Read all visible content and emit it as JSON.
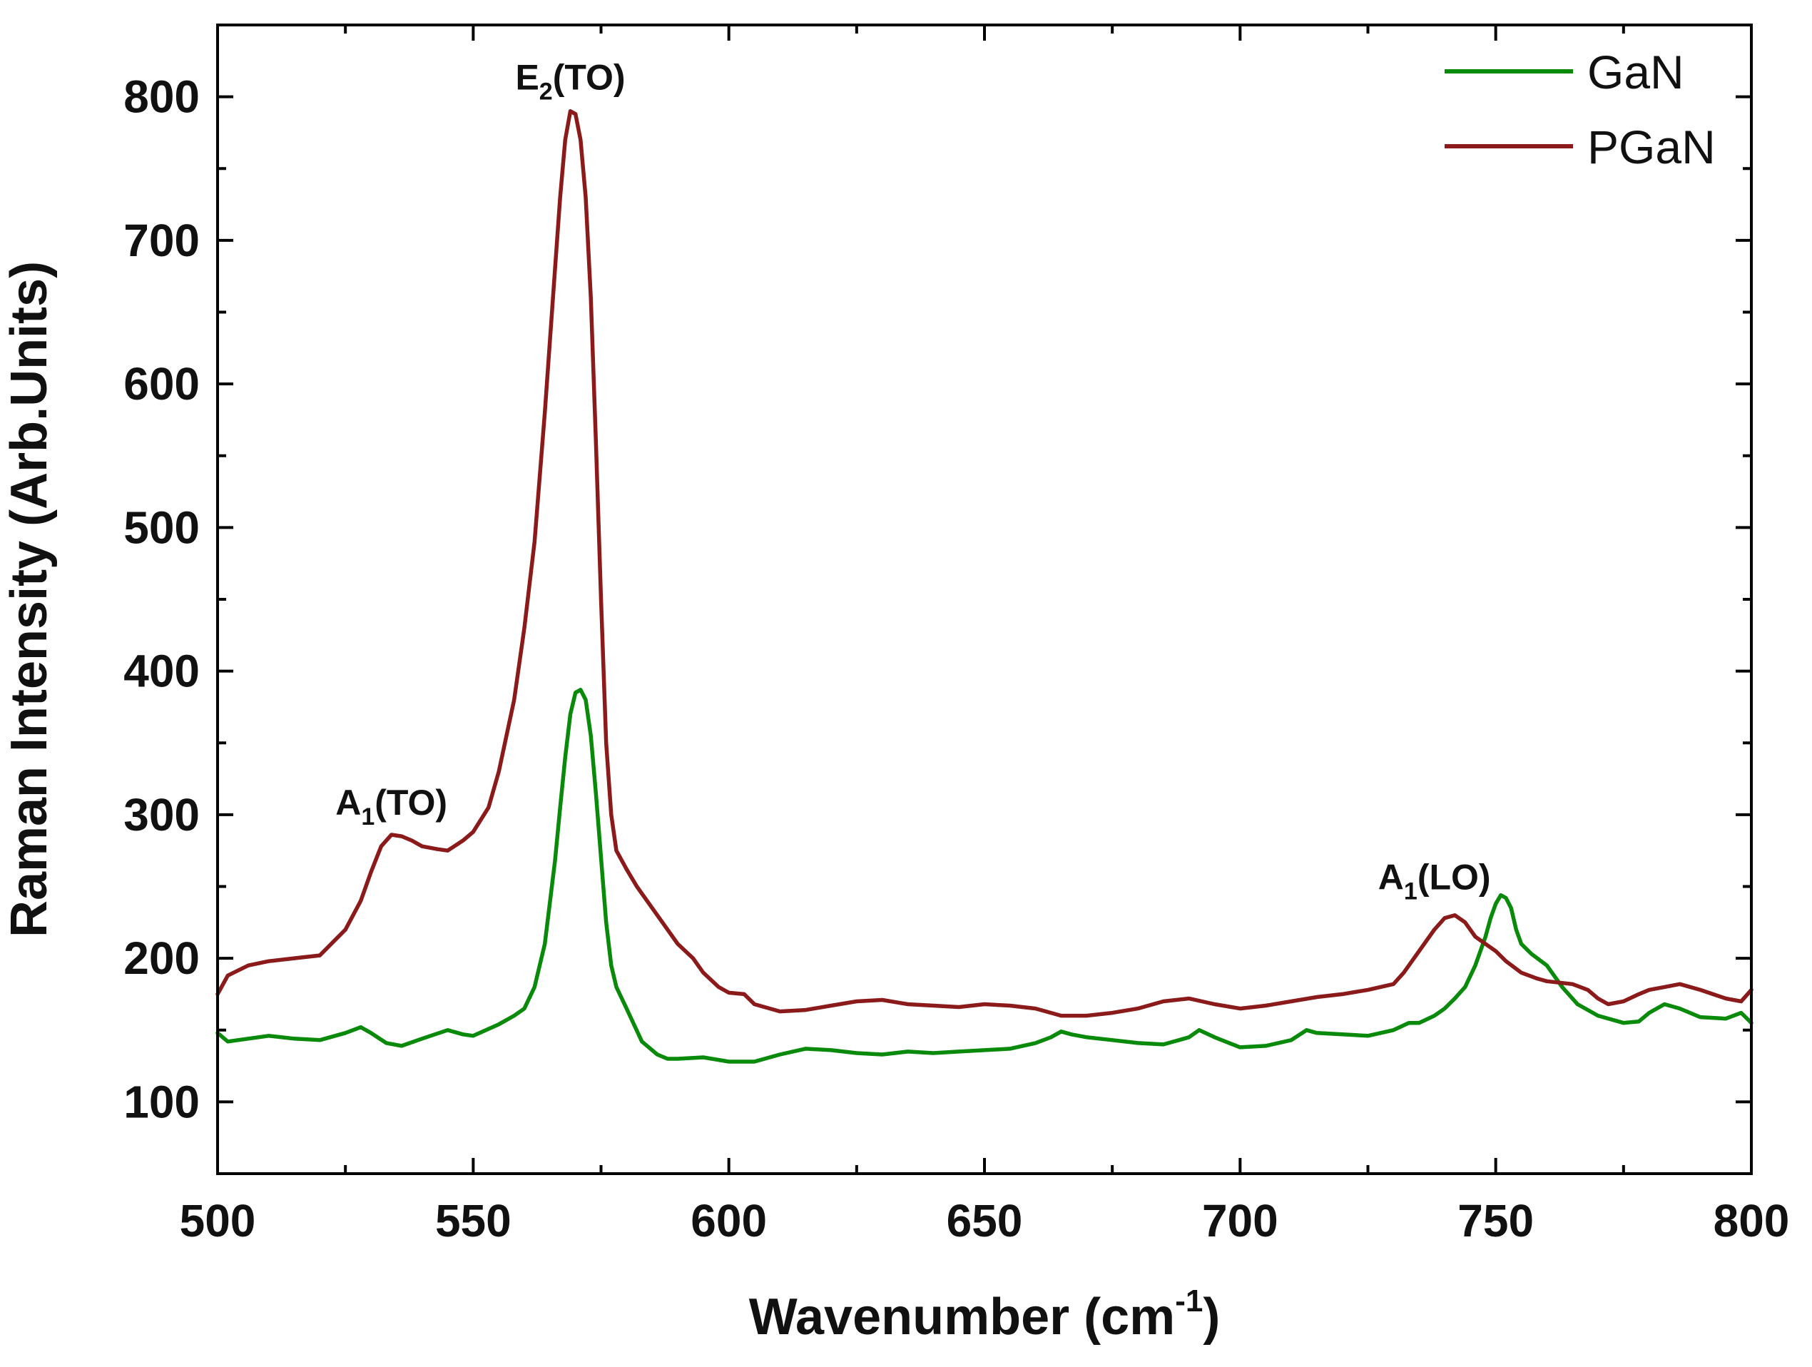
{
  "chart_data": {
    "type": "line",
    "title": "",
    "xlabel": "Wavenumber (cm",
    "xlabel_superscript": "-1",
    "xlabel_close": ")",
    "ylabel": "Raman Intensity (Arb.Units)",
    "xlim": [
      500,
      800
    ],
    "ylim": [
      50,
      850
    ],
    "x_ticks": [
      500,
      550,
      600,
      650,
      700,
      750,
      800
    ],
    "y_ticks": [
      100,
      200,
      300,
      400,
      500,
      600,
      700,
      800
    ],
    "x_tick_labels": [
      "500",
      "550",
      "600",
      "650",
      "700",
      "750",
      "800"
    ],
    "y_tick_labels": [
      "100",
      "200",
      "300",
      "400",
      "500",
      "600",
      "700",
      "800"
    ],
    "grid": false,
    "legend_position": "top-right",
    "series": [
      {
        "name": "GaN",
        "color": "#0a8a0a",
        "x": [
          500,
          502,
          506,
          510,
          515,
          520,
          525,
          528,
          530,
          533,
          536,
          540,
          545,
          548,
          550,
          555,
          558,
          560,
          562,
          564,
          566,
          567,
          568,
          569,
          570,
          571,
          572,
          573,
          574,
          575,
          576,
          577,
          578,
          580,
          583,
          586,
          588,
          590,
          595,
          600,
          605,
          610,
          615,
          620,
          625,
          630,
          635,
          640,
          645,
          650,
          655,
          660,
          663,
          665,
          667,
          670,
          675,
          680,
          685,
          690,
          692,
          695,
          700,
          705,
          710,
          713,
          715,
          720,
          725,
          730,
          733,
          735,
          738,
          740,
          742,
          744,
          746,
          748,
          749,
          750,
          751,
          752,
          753,
          754,
          755,
          757,
          760,
          763,
          766,
          770,
          775,
          778,
          780,
          783,
          786,
          790,
          795,
          798,
          800
        ],
        "y": [
          148,
          142,
          144,
          146,
          144,
          143,
          148,
          152,
          148,
          141,
          139,
          144,
          150,
          147,
          146,
          154,
          160,
          165,
          180,
          210,
          268,
          305,
          340,
          370,
          385,
          387,
          380,
          355,
          315,
          270,
          225,
          195,
          180,
          165,
          142,
          133,
          130,
          130,
          131,
          128,
          128,
          133,
          137,
          136,
          134,
          133,
          135,
          134,
          135,
          136,
          137,
          141,
          145,
          149,
          147,
          145,
          143,
          141,
          140,
          145,
          150,
          145,
          138,
          139,
          143,
          150,
          148,
          147,
          146,
          150,
          155,
          155,
          160,
          165,
          172,
          180,
          195,
          215,
          228,
          238,
          244,
          242,
          235,
          220,
          210,
          203,
          195,
          180,
          168,
          160,
          155,
          156,
          162,
          168,
          165,
          159,
          158,
          162,
          155
        ]
      },
      {
        "name": "PGaN",
        "color": "#8b1a1a",
        "x": [
          500,
          502,
          506,
          510,
          515,
          520,
          525,
          528,
          530,
          532,
          534,
          536,
          538,
          540,
          543,
          545,
          548,
          550,
          553,
          555,
          558,
          560,
          562,
          564,
          566,
          567,
          568,
          569,
          570,
          571,
          572,
          573,
          574,
          575,
          576,
          577,
          578,
          580,
          582,
          585,
          588,
          590,
          593,
          595,
          598,
          600,
          603,
          605,
          610,
          615,
          620,
          625,
          630,
          635,
          640,
          645,
          650,
          655,
          660,
          665,
          670,
          675,
          680,
          685,
          690,
          695,
          700,
          705,
          710,
          715,
          720,
          725,
          730,
          732,
          735,
          738,
          740,
          742,
          744,
          746,
          748,
          750,
          752,
          755,
          758,
          760,
          765,
          768,
          770,
          772,
          775,
          778,
          780,
          783,
          786,
          790,
          795,
          798,
          800
        ],
        "y": [
          175,
          188,
          195,
          198,
          200,
          202,
          220,
          240,
          260,
          278,
          286,
          285,
          282,
          278,
          276,
          275,
          282,
          288,
          305,
          330,
          380,
          430,
          490,
          580,
          680,
          730,
          770,
          790,
          788,
          770,
          730,
          660,
          560,
          450,
          350,
          300,
          275,
          262,
          250,
          235,
          220,
          210,
          200,
          190,
          180,
          176,
          175,
          168,
          163,
          164,
          167,
          170,
          171,
          168,
          167,
          166,
          168,
          167,
          165,
          160,
          160,
          162,
          165,
          170,
          172,
          168,
          165,
          167,
          170,
          173,
          175,
          178,
          182,
          190,
          205,
          220,
          228,
          230,
          225,
          215,
          210,
          205,
          198,
          190,
          186,
          184,
          182,
          178,
          172,
          168,
          170,
          175,
          178,
          180,
          182,
          178,
          172,
          170,
          178
        ]
      }
    ],
    "annotations": [
      {
        "main": "A",
        "sub": "1",
        "rest": "(TO)",
        "x": 534,
        "y": 300
      },
      {
        "main": "E",
        "sub": "2",
        "rest": "(TO)",
        "x": 569,
        "y": 805
      },
      {
        "main": "A",
        "sub": "1",
        "rest": "(LO)",
        "x": 738,
        "y": 248
      }
    ]
  }
}
